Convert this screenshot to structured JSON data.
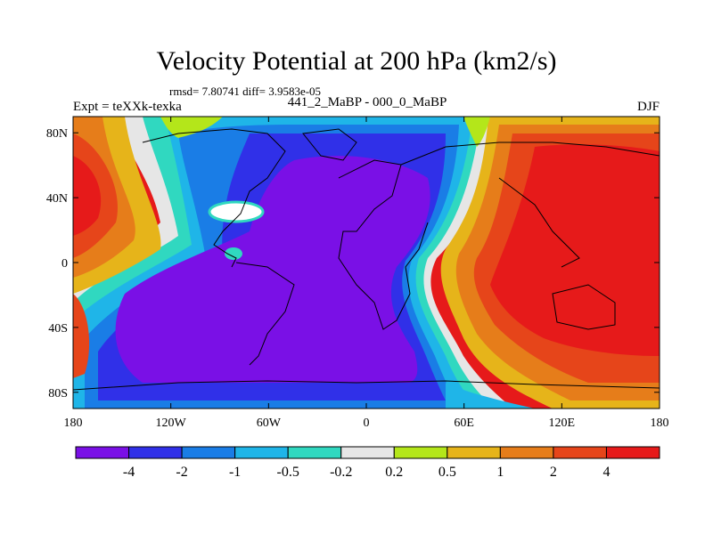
{
  "chart_data": {
    "type": "heatmap",
    "title": "Velocity Potential at 200 hPa (km2/s)",
    "stats_line": "rmsd= 7.80741 diff= 3.9583e-05",
    "left_subtitle": "Expt = teXXk-texka",
    "center_subtitle": "441_2_MaBP - 000_0_MaBP",
    "right_subtitle": "DJF",
    "x_axis": {
      "range": [
        -180,
        180
      ],
      "ticks": [
        -180,
        -120,
        -60,
        0,
        60,
        120,
        180
      ],
      "tick_labels": [
        "180",
        "120W",
        "60W",
        "0",
        "60E",
        "120E",
        "180"
      ]
    },
    "y_axis": {
      "range": [
        -90,
        90
      ],
      "ticks": [
        80,
        40,
        0,
        -40,
        -80
      ],
      "tick_labels": [
        "80N",
        "40N",
        "0",
        "40S",
        "80S"
      ]
    },
    "colorbar": {
      "levels": [
        "-4",
        "-2",
        "-1",
        "-0.5",
        "-0.2",
        "0.2",
        "0.5",
        "1",
        "2",
        "4"
      ],
      "colors": [
        "#7a10e6",
        "#3030e8",
        "#1a7de6",
        "#1fb5e8",
        "#30d8c0",
        "#e6e6e6",
        "#b4e61a",
        "#e6b41a",
        "#e67d1a",
        "#e6451a",
        "#e61a1a"
      ]
    },
    "field_description_levels": {
      "negative_center": [
        -10,
        0
      ],
      "positive_center": [
        140,
        10
      ],
      "positive_west": [
        -180,
        30
      ]
    }
  }
}
